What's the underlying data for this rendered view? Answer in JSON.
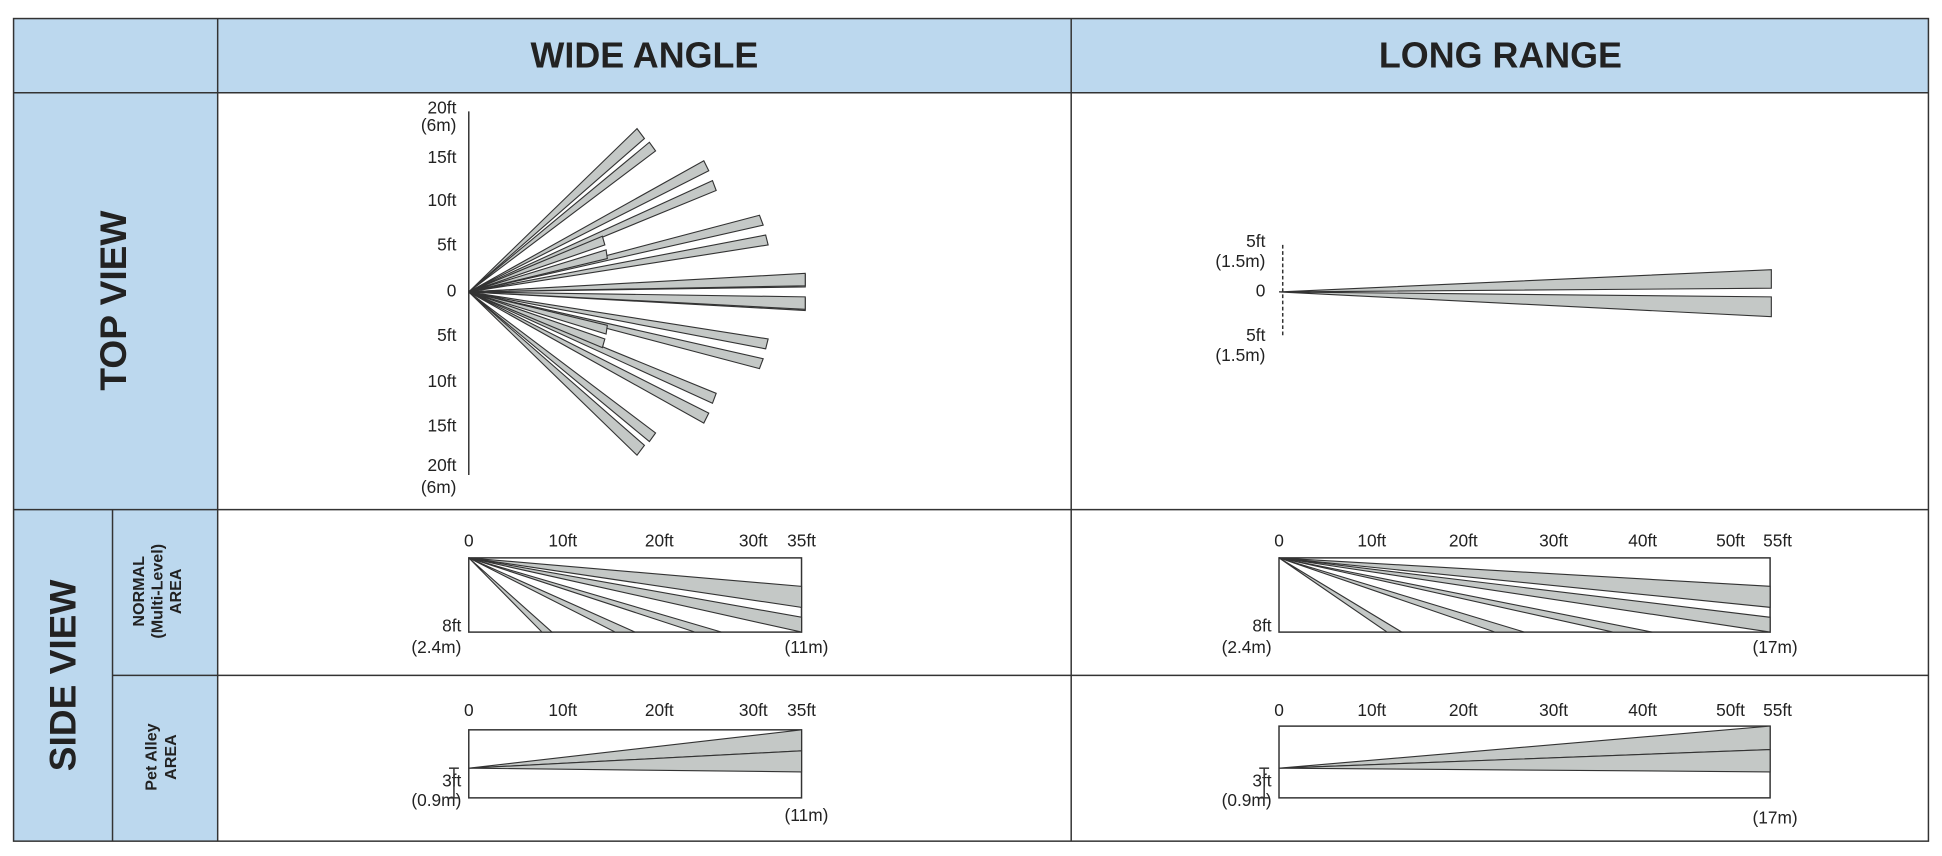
{
  "header": {
    "columns": [
      "WIDE ANGLE",
      "LONG RANGE"
    ]
  },
  "rows": {
    "top_view": "TOP VIEW",
    "side_view": "SIDE VIEW",
    "normal_area": [
      "NORMAL",
      "(Multi-Level)",
      "AREA"
    ],
    "pet_area": [
      "Pet Alley",
      "AREA"
    ]
  },
  "top_view": {
    "wide_angle": {
      "axis_labels": [
        [
          "20ft",
          "(6m)"
        ],
        [
          "15ft"
        ],
        [
          "10ft"
        ],
        [
          "5ft"
        ],
        [
          "0"
        ],
        [
          "5ft"
        ],
        [
          "10ft"
        ],
        [
          "15ft"
        ],
        [
          "20ft",
          "(6m)"
        ]
      ]
    },
    "long_range": {
      "axis_labels": [
        [
          "5ft",
          "(1.5m)"
        ],
        [
          "0"
        ],
        [
          "5ft",
          "(1.5m)"
        ]
      ]
    }
  },
  "side_view": {
    "wide_normal": {
      "distance_labels": [
        "0",
        "10ft",
        "20ft",
        "30ft",
        "35ft"
      ],
      "height_label": [
        "8ft",
        "(2.4m)"
      ],
      "range_label": "(11m)"
    },
    "long_normal": {
      "distance_labels": [
        "0",
        "10ft",
        "20ft",
        "30ft",
        "40ft",
        "50ft",
        "55ft"
      ],
      "height_label": [
        "8ft",
        "(2.4m)"
      ],
      "range_label": "(17m)"
    },
    "wide_pet": {
      "distance_labels": [
        "0",
        "10ft",
        "20ft",
        "30ft",
        "35ft"
      ],
      "height_label": [
        "3ft",
        "(0.9m)"
      ],
      "range_label": "(11m)"
    },
    "long_pet": {
      "distance_labels": [
        "0",
        "10ft",
        "20ft",
        "30ft",
        "40ft",
        "50ft",
        "55ft"
      ],
      "height_label": [
        "3ft",
        "(0.9m)"
      ],
      "range_label": "(17m)"
    }
  }
}
